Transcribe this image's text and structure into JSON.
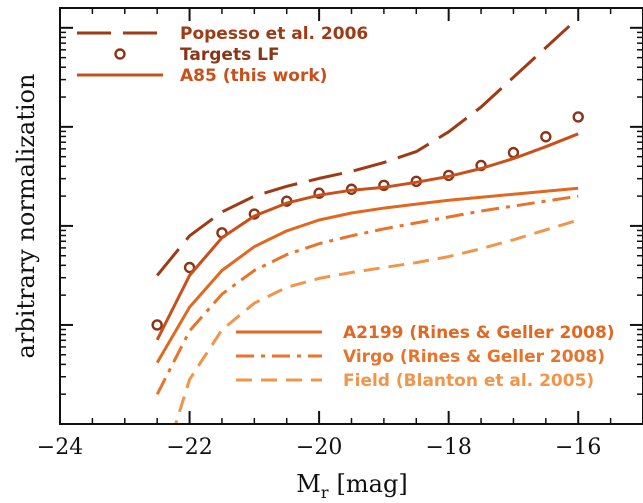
{
  "chart_data": {
    "type": "line",
    "xlabel": {
      "main": "M",
      "subscript": "r",
      "unit": "[mag]"
    },
    "ylabel": "arbitrary normalization",
    "xlim": [
      -24,
      -15
    ],
    "ylim": [
      0,
      4.2
    ],
    "y_ticks_labeled": false,
    "x_ticks": [
      -24,
      -22,
      -20,
      -18,
      -16
    ],
    "x_tick_labels": [
      "−24",
      "−22",
      "−20",
      "−18",
      "−16"
    ],
    "grid": false,
    "legends": [
      {
        "placement": "top-left",
        "entries": [
          "Popesso et al. 2006",
          "Targets LF",
          "A85 (this work)"
        ]
      },
      {
        "placement": "bottom-right",
        "entries": [
          "A2199 (Rines & Geller 2008)",
          "Virgo (Rines & Geller 2008)",
          "Field (Blanton et al. 2005)"
        ]
      }
    ],
    "series": [
      {
        "name": "Popesso et al. 2006",
        "style": "long-dash",
        "color": "#9e3a14",
        "x": [
          -22.5,
          -22,
          -21.5,
          -21,
          -20.5,
          -20,
          -19.5,
          -19,
          -18.5,
          -18,
          -17.5,
          -17,
          -16.5,
          -16
        ],
        "y": [
          1.5,
          1.9,
          2.14,
          2.3,
          2.4,
          2.48,
          2.55,
          2.64,
          2.75,
          2.95,
          3.2,
          3.5,
          3.8,
          4.1
        ]
      },
      {
        "name": "Targets LF",
        "style": "open-circles",
        "color": "#8a3517",
        "x": [
          -22.5,
          -22,
          -21.5,
          -21,
          -20.5,
          -20,
          -19.5,
          -19,
          -18.5,
          -18,
          -17.5,
          -17,
          -16.5,
          -16
        ],
        "y": [
          1.0,
          1.58,
          1.93,
          2.12,
          2.25,
          2.33,
          2.37,
          2.41,
          2.45,
          2.51,
          2.61,
          2.74,
          2.9,
          3.1
        ]
      },
      {
        "name": "A85 (this work)",
        "style": "solid",
        "color": "#c9501a",
        "x": [
          -22.5,
          -22,
          -21.5,
          -21,
          -20.5,
          -20,
          -19.5,
          -19,
          -18.5,
          -18,
          -17.5,
          -17,
          -16.5,
          -16
        ],
        "y": [
          0.85,
          1.5,
          1.88,
          2.1,
          2.23,
          2.31,
          2.36,
          2.39,
          2.44,
          2.5,
          2.58,
          2.68,
          2.8,
          2.93
        ]
      },
      {
        "name": "A2199 (Rines & Geller 2008)",
        "style": "solid",
        "color": "#e06820",
        "x": [
          -22.5,
          -22,
          -21.5,
          -21,
          -20.5,
          -20,
          -19.5,
          -19,
          -18.5,
          -18,
          -17.5,
          -17,
          -16.5,
          -16
        ],
        "y": [
          0.62,
          1.18,
          1.55,
          1.79,
          1.95,
          2.06,
          2.13,
          2.18,
          2.22,
          2.26,
          2.29,
          2.32,
          2.35,
          2.38
        ]
      },
      {
        "name": "Virgo (Rines & Geller 2008)",
        "style": "dash-dot",
        "color": "#e8732a",
        "x": [
          -22.5,
          -22,
          -21.5,
          -21,
          -20.5,
          -20,
          -19.5,
          -19,
          -18.5,
          -18,
          -17.5,
          -17,
          -16.5,
          -16
        ],
        "y": [
          0.3,
          0.94,
          1.31,
          1.55,
          1.71,
          1.82,
          1.9,
          1.97,
          2.03,
          2.09,
          2.15,
          2.2,
          2.25,
          2.3
        ]
      },
      {
        "name": "Field (Blanton et al. 2005)",
        "style": "short-dash",
        "color": "#f0954a",
        "x": [
          -22.5,
          -22,
          -21.5,
          -21,
          -20.5,
          -20,
          -19.5,
          -19,
          -18.5,
          -18,
          -17.5,
          -17,
          -16.5,
          -16
        ],
        "y": [
          -0.6,
          0.45,
          0.95,
          1.22,
          1.38,
          1.47,
          1.53,
          1.58,
          1.63,
          1.69,
          1.77,
          1.86,
          1.96,
          2.06
        ]
      }
    ]
  }
}
